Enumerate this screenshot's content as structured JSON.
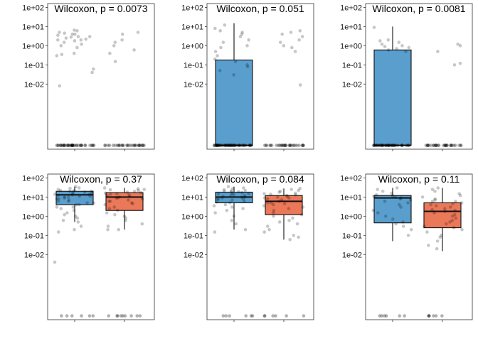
{
  "panel_titles": [
    "Wilcoxon, p = 0.0073",
    "Wilcoxon, p = 0.051",
    "Wilcoxon, p = 0.0081",
    "Wilcoxon, p = 0.37",
    "Wilcoxon, p = 0.084",
    "Wilcoxon, p = 0.11"
  ],
  "y_tick_labels": [
    "1e+02",
    "1e+01",
    "1e+00",
    "1e-01",
    "1e-02"
  ],
  "colors": {
    "group1": "#3C8DC4",
    "group2": "#E8603C",
    "points": "#000000",
    "frame": "#333333"
  },
  "chart_data": [
    {
      "type": "box",
      "title": "Wilcoxon, p = 0.0073",
      "scale": "log10",
      "y_ticks": [
        100,
        10,
        1,
        0.1,
        0.01
      ],
      "ylim_log10": [
        -5.4,
        2.2
      ],
      "zero_level_log10": -5.2,
      "groups": [
        {
          "color": "#3C8DC4",
          "box": null,
          "zero_count": 40,
          "points": [
            6.5,
            6,
            5,
            4.5,
            4,
            4,
            3.5,
            3,
            3,
            2.8,
            2.5,
            2.2,
            2,
            2,
            1.8,
            1.5,
            1.2,
            1,
            0.8,
            0.4,
            0.35,
            0.3,
            0.04,
            0.06,
            0.008
          ]
        },
        {
          "color": "#E8603C",
          "box": null,
          "zero_count": 30,
          "points": [
            5,
            4,
            2,
            1.5,
            1,
            0.6,
            0.4,
            0.15
          ]
        }
      ]
    },
    {
      "type": "box",
      "title": "Wilcoxon, p = 0.051",
      "scale": "log10",
      "y_ticks": [
        100,
        10,
        1,
        0.1,
        0.01
      ],
      "ylim_log10": [
        -5.4,
        2.2
      ],
      "zero_level_log10": -5.2,
      "groups": [
        {
          "color": "#3C8DC4",
          "box": {
            "q1_zero": true,
            "median_zero": true,
            "q3": 0.18,
            "whisker_high": 15
          },
          "zero_count": 45,
          "points": [
            12,
            8,
            6,
            5,
            4,
            3,
            2,
            1.5,
            1,
            0.8,
            0.5,
            0.3,
            0.2,
            0.15,
            0.1,
            0.08,
            0.05,
            0.03
          ]
        },
        {
          "color": "#E8603C",
          "box": null,
          "zero_count": 30,
          "points": [
            6,
            5,
            4,
            3,
            2,
            1.5,
            1,
            0.8,
            0.5,
            0.009
          ]
        }
      ]
    },
    {
      "type": "box",
      "title": "Wilcoxon, p = 0.0081",
      "scale": "log10",
      "y_ticks": [
        100,
        10,
        1,
        0.1,
        0.01
      ],
      "ylim_log10": [
        -5.4,
        2.2
      ],
      "zero_level_log10": -5.2,
      "groups": [
        {
          "color": "#3C8DC4",
          "box": {
            "q1_zero": true,
            "median_zero": true,
            "q3": 0.6,
            "whisker_high": 10
          },
          "zero_count": 35,
          "points": [
            9,
            2,
            1.8,
            1.5,
            1.2,
            1,
            0.9,
            0.8,
            0.7,
            0.6,
            0.5
          ]
        },
        {
          "color": "#E8603C",
          "box": null,
          "zero_count": 30,
          "points": [
            1.2,
            1,
            0.5,
            0.12,
            0.1
          ]
        }
      ]
    },
    {
      "type": "box",
      "title": "Wilcoxon, p = 0.37",
      "scale": "log10",
      "y_ticks": [
        100,
        10,
        1,
        0.1,
        0.01
      ],
      "ylim_log10": [
        -5.4,
        2.2
      ],
      "zero_level_log10": -5.2,
      "groups": [
        {
          "color": "#3C8DC4",
          "box": {
            "q1": 4,
            "median": 13,
            "q3": 20,
            "whisker_low": 0.5,
            "whisker_high": 35
          },
          "zero_count": 6,
          "points": [
            35,
            30,
            28,
            25,
            22,
            20,
            20,
            18,
            16,
            15,
            14,
            13,
            12,
            11,
            10,
            10,
            9,
            8,
            7,
            6,
            5,
            5,
            4,
            4,
            3,
            3,
            2.5,
            2,
            1.5,
            1.2,
            1,
            0.8,
            0.6,
            0.5,
            0.3,
            0.2,
            0.15,
            0.004,
            22,
            18,
            14,
            11,
            8,
            6
          ]
        },
        {
          "color": "#E8603C",
          "box": {
            "q1": 2,
            "median": 10,
            "q3": 17,
            "whisker_low": 0.2,
            "whisker_high": 30
          },
          "zero_count": 9,
          "points": [
            30,
            27,
            25,
            22,
            20,
            18,
            17,
            16,
            15,
            13,
            12,
            11,
            10,
            9,
            8,
            7,
            6,
            5,
            4.5,
            4,
            3,
            2.5,
            2,
            1.5,
            1.2,
            1,
            0.8,
            0.6,
            0.4,
            0.3,
            0.2,
            0.2,
            24,
            14,
            9,
            6
          ]
        }
      ]
    },
    {
      "type": "box",
      "title": "Wilcoxon, p = 0.084",
      "scale": "log10",
      "y_ticks": [
        100,
        10,
        1,
        0.1,
        0.01
      ],
      "ylim_log10": [
        -5.4,
        2.2
      ],
      "zero_level_log10": -5.2,
      "groups": [
        {
          "color": "#3C8DC4",
          "box": {
            "q1": 5,
            "median": 10,
            "q3": 18,
            "whisker_low": 0.2,
            "whisker_high": 35
          },
          "zero_count": 6,
          "points": [
            35,
            30,
            27,
            24,
            22,
            20,
            19,
            18,
            16,
            15,
            14,
            13,
            12,
            11,
            10,
            10,
            9,
            8,
            7.5,
            7,
            6,
            5.5,
            5,
            4,
            3.5,
            3,
            2.5,
            2,
            1.5,
            1,
            0.6,
            0.4,
            0.15,
            0.2,
            21,
            17,
            12,
            8
          ]
        },
        {
          "color": "#E8603C",
          "box": {
            "q1": 1.2,
            "median": 6,
            "q3": 12,
            "whisker_low": 0.06,
            "whisker_high": 28
          },
          "zero_count": 6,
          "points": [
            28,
            25,
            22,
            20,
            18,
            16,
            14,
            13,
            12,
            11,
            10,
            9,
            8,
            7,
            6,
            5,
            4.5,
            4,
            3.5,
            3,
            2.5,
            2,
            1.5,
            1.2,
            1,
            0.8,
            0.6,
            0.5,
            0.4,
            0.3,
            0.2,
            0.15,
            0.1,
            0.08,
            0.06,
            15,
            9,
            5
          ]
        }
      ]
    },
    {
      "type": "box",
      "title": "Wilcoxon, p = 0.11",
      "scale": "log10",
      "y_ticks": [
        100,
        10,
        1,
        0.1,
        0.01
      ],
      "ylim_log10": [
        -5.4,
        2.2
      ],
      "zero_level_log10": -5.2,
      "groups": [
        {
          "color": "#3C8DC4",
          "box": {
            "q1": 0.45,
            "median": 9,
            "q3": 12,
            "whisker_low": 0.05,
            "whisker_high": 30
          },
          "zero_count": 6,
          "points": [
            30,
            25,
            20,
            16,
            13,
            12,
            11,
            10,
            9,
            8,
            7,
            6,
            5,
            4,
            3,
            2,
            1.5,
            1,
            0.7,
            0.5,
            0.4,
            0.3,
            0.2,
            0.1
          ]
        },
        {
          "color": "#E8603C",
          "box": {
            "q1": 0.25,
            "median": 1.8,
            "q3": 5,
            "whisker_low": 0.015,
            "whisker_high": 30
          },
          "zero_count": 6,
          "points": [
            30,
            25,
            20,
            15,
            12,
            10,
            8,
            7,
            6,
            5,
            4.5,
            4,
            3.5,
            3,
            2.5,
            2,
            1.8,
            1.5,
            1.2,
            1,
            0.8,
            0.6,
            0.5,
            0.4,
            0.3,
            0.25,
            0.2,
            0.15,
            0.1,
            0.08,
            0.05,
            0.03,
            0.02,
            6,
            2.2
          ]
        }
      ]
    }
  ]
}
